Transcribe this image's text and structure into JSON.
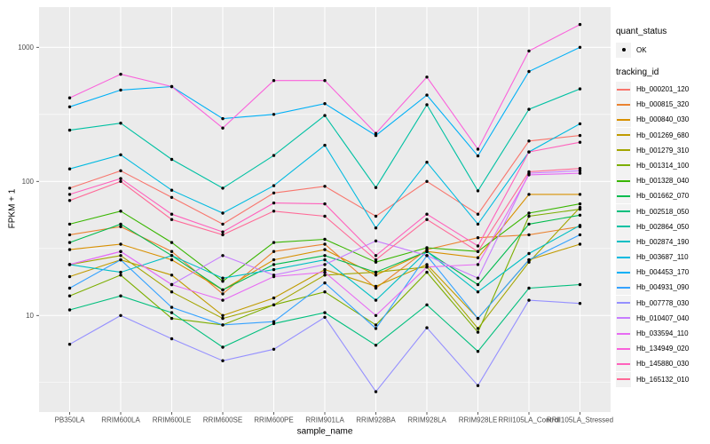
{
  "axes": {
    "y_title": "FPKM + 1",
    "x_title": "sample_name",
    "y_tick_labels": [
      "1000",
      "100",
      "10"
    ],
    "y_tick_values": [
      1000,
      100,
      10
    ],
    "y_minor_values": [
      3.1623,
      31.623,
      316.23
    ]
  },
  "legend": {
    "quant_status_title": "quant_status",
    "quant_status_items": [
      {
        "label": "OK",
        "symbol": "point"
      }
    ],
    "tracking_id_title": "tracking_id"
  },
  "colors": {
    "panel_background": "#EBEBEB",
    "gridline": "#FFFFFF",
    "axis_text": "#4D4D4D",
    "tick_mark": "#333333",
    "point": "#000000",
    "legend_key_background": "#F2F2F2"
  },
  "chart_data": {
    "type": "line",
    "title": "",
    "xlabel": "sample_name",
    "ylabel": "FPKM + 1",
    "y_scale": "log10",
    "ylim": [
      2,
      2000
    ],
    "grid": true,
    "legend_position": "right",
    "quant_status": "OK",
    "point_shape": "circle",
    "point_color": "#000000",
    "categories": [
      "PB350LA",
      "RRIM600LA",
      "RRIM600LE",
      "RRIM600SE",
      "RRIM600PE",
      "RRIM901LA",
      "RRIM928BA",
      "RRIM928LA",
      "RRIM928LE",
      "RRII105LA_Control",
      "RRII105LA_Stressed"
    ],
    "series": [
      {
        "name": "Hb_000201_120",
        "color": "#F8766D",
        "values": [
          89,
          120,
          76,
          48,
          82,
          92,
          55,
          100,
          57,
          200,
          220
        ]
      },
      {
        "name": "Hb_000815_320",
        "color": "#EA8331",
        "values": [
          40,
          46,
          30,
          14.5,
          30,
          34,
          16,
          31,
          38,
          40,
          46
        ]
      },
      {
        "name": "Hb_000840_030",
        "color": "#D89000",
        "values": [
          31,
          34,
          26,
          15.5,
          26,
          31,
          20,
          30,
          27,
          80,
          80
        ]
      },
      {
        "name": "Hb_001269_680",
        "color": "#C09B00",
        "values": [
          19.5,
          26,
          20,
          10,
          13.5,
          22,
          16.5,
          24,
          9.5,
          26,
          34
        ]
      },
      {
        "name": "Hb_001279_310",
        "color": "#A3A500",
        "values": [
          24,
          28,
          15,
          9.5,
          12,
          20,
          21,
          23,
          8,
          25,
          64
        ]
      },
      {
        "name": "Hb_001314_100",
        "color": "#7CAE00",
        "values": [
          14,
          20,
          9.5,
          8.5,
          12,
          15,
          8.5,
          21,
          7.5,
          55,
          62
        ]
      },
      {
        "name": "Hb_001328_040",
        "color": "#39B600",
        "values": [
          48,
          60,
          35,
          18,
          35,
          37,
          25,
          32,
          30,
          58,
          68
        ]
      },
      {
        "name": "Hb_001662_070",
        "color": "#00BB4E",
        "values": [
          35,
          48,
          28,
          15.5,
          24,
          28,
          21,
          30,
          17,
          48,
          56
        ]
      },
      {
        "name": "Hb_002518_050",
        "color": "#00BF7D",
        "values": [
          11,
          14,
          10.5,
          5.8,
          8.7,
          10.5,
          6,
          12,
          5.4,
          16,
          17
        ]
      },
      {
        "name": "Hb_002864_050",
        "color": "#00C1A3",
        "values": [
          241,
          272,
          146,
          89,
          156,
          310,
          90,
          373,
          85,
          345,
          490
        ]
      },
      {
        "name": "Hb_002874_190",
        "color": "#00BFC4",
        "values": [
          24,
          21,
          28,
          19,
          22,
          26,
          13,
          30,
          15,
          29,
          47
        ]
      },
      {
        "name": "Hb_003687_110",
        "color": "#00BAE0",
        "values": [
          124,
          158,
          86,
          58,
          93,
          186,
          45,
          139,
          48,
          166,
          269
        ]
      },
      {
        "name": "Hb_004453_170",
        "color": "#00B0F6",
        "values": [
          360,
          480,
          510,
          294,
          316,
          380,
          220,
          440,
          155,
          660,
          1000
        ]
      },
      {
        "name": "Hb_004931_090",
        "color": "#35A2FF",
        "values": [
          16,
          26,
          11.5,
          8.5,
          9,
          17.5,
          8,
          28,
          9.5,
          26,
          40
        ]
      },
      {
        "name": "Hb_007778_030",
        "color": "#9590FF",
        "values": [
          6.1,
          10,
          6.7,
          4.6,
          5.6,
          9.7,
          2.7,
          8.1,
          3.0,
          13,
          12.3
        ]
      },
      {
        "name": "Hb_010407_040",
        "color": "#C77CFF",
        "values": [
          24,
          30,
          17,
          28,
          20,
          24,
          36,
          28,
          19,
          115,
          120
        ]
      },
      {
        "name": "Hb_033594_110",
        "color": "#E76BF3",
        "values": [
          24,
          30,
          17,
          13,
          19.5,
          21,
          10,
          23,
          24,
          112,
          115
        ]
      },
      {
        "name": "Hb_134949_020",
        "color": "#FA62DB",
        "values": [
          420,
          630,
          510,
          250,
          565,
          565,
          228,
          600,
          174,
          940,
          1480
        ]
      },
      {
        "name": "Hb_145880_030",
        "color": "#FF62BC",
        "values": [
          80,
          105,
          57,
          42,
          69,
          68,
          28,
          57,
          33,
          166,
          196
        ]
      },
      {
        "name": "Hb_165132_010",
        "color": "#FF6A98",
        "values": [
          72,
          100,
          52,
          40,
          60,
          55,
          26,
          52,
          30,
          118,
          125
        ]
      }
    ]
  }
}
